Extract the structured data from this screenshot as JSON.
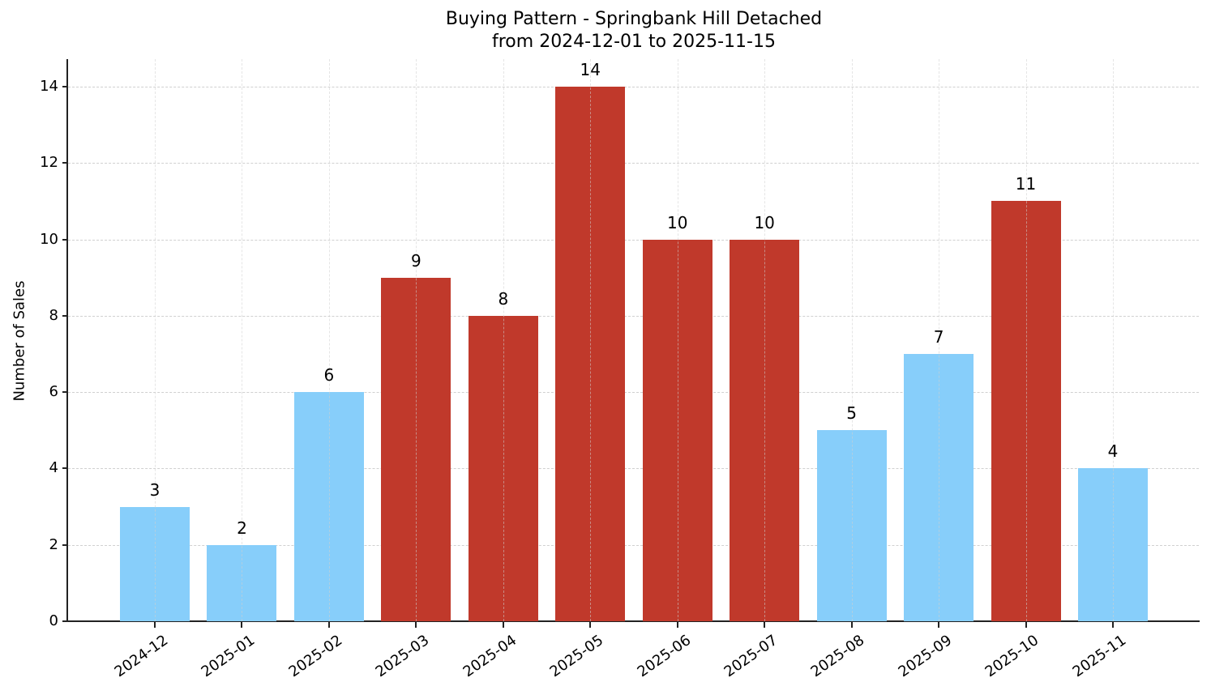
{
  "chart_data": {
    "type": "bar",
    "title": "Buying Pattern - Springbank Hill Detached",
    "subtitle": "from 2024-12-01 to 2025-11-15",
    "xlabel": "",
    "ylabel": "Number of Sales",
    "ylim": [
      0,
      14.7
    ],
    "yticks": [
      0,
      2,
      4,
      6,
      8,
      10,
      12,
      14
    ],
    "grid": true,
    "legend": null,
    "categories": [
      "2024-12",
      "2025-01",
      "2025-02",
      "2025-03",
      "2025-04",
      "2025-05",
      "2025-06",
      "2025-07",
      "2025-08",
      "2025-09",
      "2025-10",
      "2025-11"
    ],
    "values": [
      3,
      2,
      6,
      9,
      8,
      14,
      10,
      10,
      5,
      7,
      11,
      4
    ],
    "bar_colors": [
      "#87CEFA",
      "#87CEFA",
      "#87CEFA",
      "#C0392B",
      "#C0392B",
      "#C0392B",
      "#C0392B",
      "#C0392B",
      "#87CEFA",
      "#87CEFA",
      "#C0392B",
      "#87CEFA"
    ],
    "color_legend": {
      "high": "#C0392B",
      "low": "#87CEFA"
    },
    "data_labels": [
      "3",
      "2",
      "6",
      "9",
      "8",
      "14",
      "10",
      "10",
      "5",
      "7",
      "11",
      "4"
    ]
  }
}
